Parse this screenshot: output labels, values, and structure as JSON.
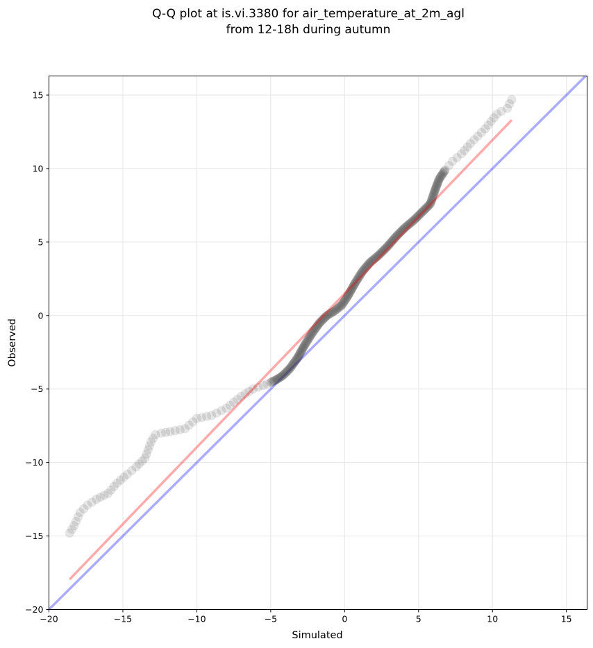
{
  "chart_data": {
    "type": "scatter",
    "title_lines": [
      "Q-Q plot at is.vi.3380 for air_temperature_at_2m_agl",
      "from 12-18h during autumn"
    ],
    "xlabel": "Simulated",
    "ylabel": "Observed",
    "xlim": [
      -20,
      16.4
    ],
    "ylim": [
      -20,
      16.3
    ],
    "xticks": [
      -20,
      -15,
      -10,
      -5,
      0,
      5,
      10,
      15
    ],
    "yticks": [
      -20,
      -15,
      -10,
      -5,
      0,
      5,
      10,
      15
    ],
    "xtick_labels": [
      "−20",
      "−15",
      "−10",
      "−5",
      "0",
      "5",
      "10",
      "15"
    ],
    "ytick_labels": [
      "−20",
      "−15",
      "−10",
      "−5",
      "0",
      "5",
      "10",
      "15"
    ],
    "grid": true,
    "colors": {
      "points": "#333333",
      "fit_line": "#ff0000",
      "identity_line": "#0000ff",
      "grid": "#e6e6e6"
    },
    "identity_line": {
      "x": [
        -20,
        16.4
      ],
      "y": [
        -20,
        16.4
      ]
    },
    "fit_line": {
      "x": [
        -18.6,
        11.3
      ],
      "y": [
        -17.95,
        13.3
      ]
    },
    "quantile_curve": {
      "x": [
        -18.6,
        -18.3,
        -17.9,
        -17.4,
        -16.8,
        -16.0,
        -15.4,
        -14.7,
        -14.1,
        -13.5,
        -13.1,
        -12.8,
        -12.4,
        -11.8,
        -10.8,
        -10.0,
        -9.0,
        -8.0,
        -7.0,
        -6.2,
        -5.5,
        -5.0,
        -4.6,
        -4.2,
        -3.7,
        -3.2,
        -2.7,
        -2.2,
        -1.7,
        -1.2,
        -0.7,
        -0.2,
        0.2,
        0.7,
        1.2,
        1.7,
        2.3,
        2.9,
        3.5,
        4.1,
        4.7,
        5.3,
        5.8,
        6.1,
        6.4,
        6.8,
        7.3,
        7.9,
        8.5,
        9.0,
        9.5,
        9.9,
        10.3,
        10.6,
        11.0,
        11.3
      ],
      "y": [
        -14.8,
        -14.3,
        -13.4,
        -12.9,
        -12.5,
        -12.1,
        -11.4,
        -10.8,
        -10.3,
        -9.7,
        -8.6,
        -8.1,
        -8.0,
        -7.9,
        -7.7,
        -7.0,
        -6.8,
        -6.3,
        -5.5,
        -5.0,
        -4.75,
        -4.55,
        -4.35,
        -4.1,
        -3.6,
        -2.9,
        -2.0,
        -1.2,
        -0.5,
        0.0,
        0.3,
        0.7,
        1.3,
        2.2,
        3.0,
        3.6,
        4.1,
        4.7,
        5.4,
        6.0,
        6.5,
        7.1,
        7.6,
        8.5,
        9.3,
        9.9,
        10.5,
        11.0,
        11.7,
        12.2,
        12.7,
        13.2,
        13.7,
        13.9,
        14.1,
        14.7
      ]
    }
  }
}
